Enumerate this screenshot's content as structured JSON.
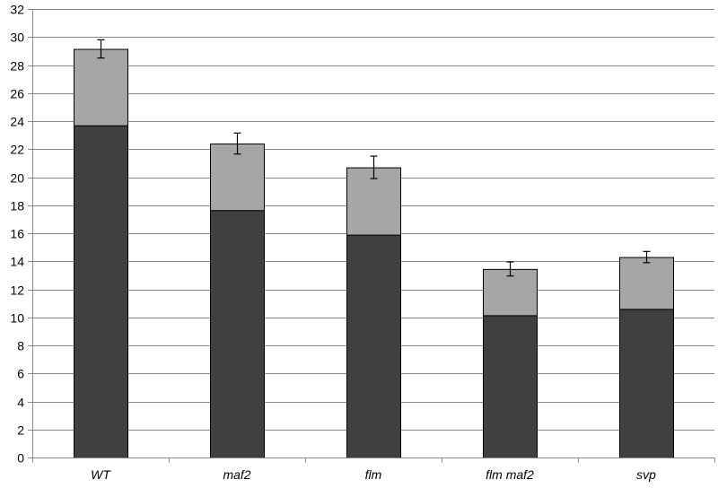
{
  "chart_data": {
    "type": "bar",
    "stacked": true,
    "title": "",
    "xlabel": "",
    "ylabel": "",
    "ylim": [
      0,
      32
    ],
    "yticks": [
      0,
      2,
      4,
      6,
      8,
      10,
      12,
      14,
      16,
      18,
      20,
      22,
      24,
      26,
      28,
      30,
      32
    ],
    "grid": true,
    "legend": "none",
    "categories": [
      "WT",
      "maf2",
      "flm",
      "flm maf2",
      "svp"
    ],
    "series": [
      {
        "color": "#404040",
        "values": [
          23.7,
          17.65,
          15.9,
          10.15,
          10.6
        ]
      },
      {
        "color": "#a6a6a6",
        "values": [
          5.45,
          4.75,
          4.8,
          3.3,
          3.7
        ]
      }
    ],
    "totals": [
      29.15,
      22.4,
      20.7,
      13.45,
      14.3
    ],
    "error": [
      0.65,
      0.75,
      0.8,
      0.5,
      0.4
    ]
  }
}
